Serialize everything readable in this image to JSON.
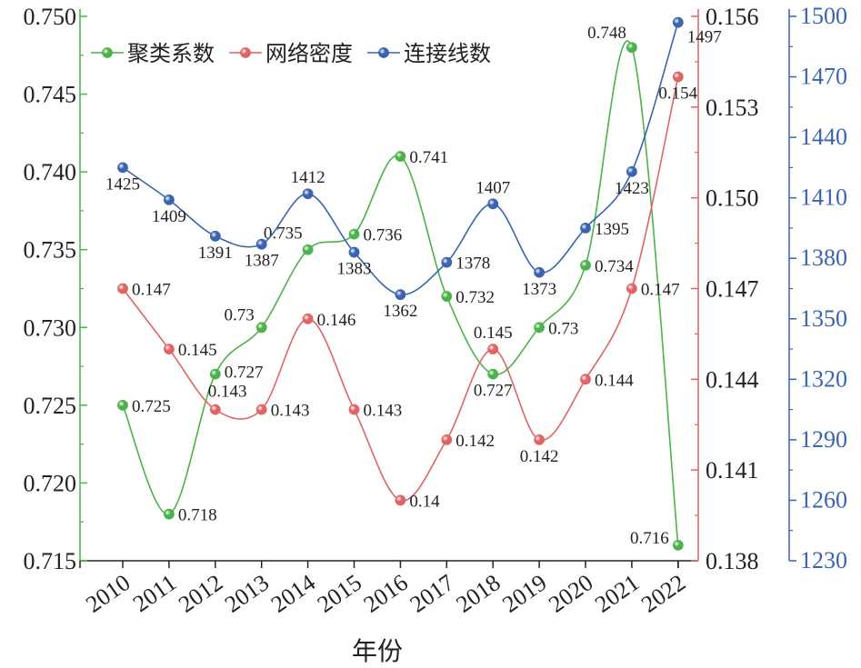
{
  "chart_data": {
    "type": "line",
    "xlabel": "年份",
    "categories": [
      "2010",
      "2011",
      "2012",
      "2013",
      "2014",
      "2015",
      "2016",
      "2017",
      "2018",
      "2019",
      "2020",
      "2021",
      "2022"
    ],
    "series": [
      {
        "name": "聚类系数",
        "color": "#4cb24a",
        "axis": "left",
        "values": [
          0.725,
          0.718,
          0.727,
          0.73,
          0.735,
          0.736,
          0.741,
          0.732,
          0.727,
          0.73,
          0.734,
          0.748,
          0.716
        ],
        "labels": [
          "0.725",
          "0.718",
          "0.727",
          "0.73",
          "0.735",
          "0.736",
          "0.741",
          "0.732",
          "0.727",
          "0.73",
          "0.734",
          "0.748",
          "0.716"
        ]
      },
      {
        "name": "网络密度",
        "color": "#e06464",
        "axis": "middle",
        "values": [
          0.147,
          0.145,
          0.143,
          0.143,
          0.146,
          0.143,
          0.14,
          0.142,
          0.145,
          0.142,
          0.144,
          0.147,
          0.154
        ],
        "labels": [
          "0.147",
          "0.145",
          "0.143",
          "0.143",
          "0.146",
          "0.143",
          "0.14",
          "0.142",
          "0.145",
          "0.142",
          "0.144",
          "0.147",
          "0.154"
        ]
      },
      {
        "name": "连接线数",
        "color": "#3a64b0",
        "axis": "right",
        "values": [
          1425,
          1409,
          1391,
          1387,
          1412,
          1383,
          1362,
          1378,
          1407,
          1373,
          1395,
          1423,
          1497
        ],
        "labels": [
          "1425",
          "1409",
          "1391",
          "1387",
          "1412",
          "1383",
          "1362",
          "1378",
          "1407",
          "1373",
          "1395",
          "1423",
          "1497"
        ]
      }
    ],
    "axes": {
      "left": {
        "color": "#4cb24a",
        "ylim": [
          0.715,
          0.75
        ],
        "ticks": [
          "0.715",
          "0.720",
          "0.725",
          "0.730",
          "0.735",
          "0.740",
          "0.745",
          "0.750"
        ]
      },
      "middle": {
        "color": "#e06464",
        "ylim": [
          0.138,
          0.156
        ],
        "ticks": [
          "0.138",
          "0.141",
          "0.144",
          "0.147",
          "0.150",
          "0.153",
          "0.156"
        ]
      },
      "right": {
        "color": "#3a64b0",
        "ylim": [
          1230,
          1500
        ],
        "ticks": [
          "1230",
          "1260",
          "1290",
          "1320",
          "1350",
          "1380",
          "1410",
          "1440",
          "1470",
          "1500"
        ]
      }
    },
    "legend": "top-left",
    "grid": false
  }
}
